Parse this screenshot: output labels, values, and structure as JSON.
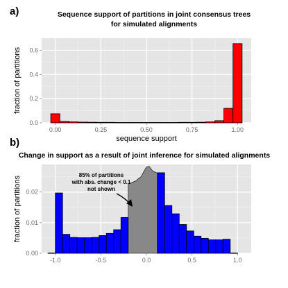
{
  "panels": {
    "a": {
      "letter": "a)",
      "title_line1": "Sequence support of partitions in joint consensus trees",
      "title_line2": "for simulated alignments"
    },
    "b": {
      "letter": "b)",
      "title": "Change in support as a result of joint inference for simulated alignments",
      "annotation_lines": [
        "85%  of partitions",
        "with abs. change < 0.1",
        "not shown"
      ]
    }
  },
  "chart_data": [
    {
      "type": "bar",
      "title": "Sequence support of partitions in joint consensus trees for simulated alignments",
      "xlabel": "sequence support",
      "ylabel": "fraction of partitions",
      "xlim": [
        -0.075,
        1.075
      ],
      "ylim": [
        0,
        0.7
      ],
      "x_ticks": [
        "0.00",
        "0.25",
        "0.50",
        "0.75",
        "1.00"
      ],
      "x_tick_values": [
        0,
        0.25,
        0.5,
        0.75,
        1.0
      ],
      "y_ticks": [
        "0.0",
        "0.2",
        "0.4",
        "0.6"
      ],
      "y_tick_values": [
        0,
        0.2,
        0.4,
        0.6
      ],
      "bar_width": 0.05,
      "bar_color": "#ff0000",
      "grid": true,
      "bars": [
        {
          "x": 0.0,
          "value": 0.075
        },
        {
          "x": 0.05,
          "value": 0.012
        },
        {
          "x": 0.1,
          "value": 0.008
        },
        {
          "x": 0.15,
          "value": 0.006
        },
        {
          "x": 0.2,
          "value": 0.005
        },
        {
          "x": 0.25,
          "value": 0.004
        },
        {
          "x": 0.3,
          "value": 0.004
        },
        {
          "x": 0.35,
          "value": 0.003
        },
        {
          "x": 0.4,
          "value": 0.003
        },
        {
          "x": 0.45,
          "value": 0.003
        },
        {
          "x": 0.5,
          "value": 0.003
        },
        {
          "x": 0.55,
          "value": 0.003
        },
        {
          "x": 0.6,
          "value": 0.003
        },
        {
          "x": 0.65,
          "value": 0.003
        },
        {
          "x": 0.7,
          "value": 0.004
        },
        {
          "x": 0.75,
          "value": 0.004
        },
        {
          "x": 0.8,
          "value": 0.005
        },
        {
          "x": 0.85,
          "value": 0.008
        },
        {
          "x": 0.9,
          "value": 0.018
        },
        {
          "x": 0.95,
          "value": 0.12
        },
        {
          "x": 1.0,
          "value": 0.655
        }
      ]
    },
    {
      "type": "bar",
      "title": "Change in support as a result of joint inference for simulated alignments",
      "xlabel": "",
      "ylabel": "fraction of partitions",
      "xlim": [
        -1.15,
        1.15
      ],
      "ylim": [
        0,
        0.029
      ],
      "x_ticks": [
        "-1.0",
        "-0.5",
        "0.0",
        "0.5",
        "1.0"
      ],
      "x_tick_values": [
        -1.0,
        -0.5,
        0.0,
        0.5,
        1.0
      ],
      "y_ticks": [
        "0.00",
        "0.01",
        "0.02"
      ],
      "y_tick_values": [
        0,
        0.01,
        0.02
      ],
      "bar_width": 0.08,
      "bar_color": "#0000ff",
      "grid": true,
      "bars": [
        {
          "x": -1.04,
          "value": 0.0001
        },
        {
          "x": -0.96,
          "value": 0.0197
        },
        {
          "x": -0.88,
          "value": 0.0062
        },
        {
          "x": -0.8,
          "value": 0.0052
        },
        {
          "x": -0.72,
          "value": 0.0051
        },
        {
          "x": -0.64,
          "value": 0.0051
        },
        {
          "x": -0.56,
          "value": 0.0052
        },
        {
          "x": -0.48,
          "value": 0.0058
        },
        {
          "x": -0.4,
          "value": 0.0065
        },
        {
          "x": -0.32,
          "value": 0.0077
        },
        {
          "x": -0.24,
          "value": 0.0117
        },
        {
          "x": 0.16,
          "value": 0.0263
        },
        {
          "x": 0.24,
          "value": 0.0156
        },
        {
          "x": 0.32,
          "value": 0.0129
        },
        {
          "x": 0.4,
          "value": 0.0094
        },
        {
          "x": 0.48,
          "value": 0.0073
        },
        {
          "x": 0.56,
          "value": 0.0056
        },
        {
          "x": 0.64,
          "value": 0.0049
        },
        {
          "x": 0.72,
          "value": 0.0044
        },
        {
          "x": 0.8,
          "value": 0.0044
        },
        {
          "x": 0.88,
          "value": 0.0046
        },
        {
          "x": 0.96,
          "value": 0.0001
        }
      ],
      "hidden_region": {
        "color": "#888888",
        "points": [
          [
            -0.2,
            0
          ],
          [
            -0.2,
            0.0226
          ],
          [
            -0.12,
            0.0236
          ],
          [
            -0.06,
            0.025
          ],
          [
            0.0,
            0.0282
          ],
          [
            0.03,
            0.0284
          ],
          [
            0.07,
            0.0268
          ],
          [
            0.12,
            0.0262
          ],
          [
            0.12,
            0
          ]
        ]
      }
    }
  ]
}
